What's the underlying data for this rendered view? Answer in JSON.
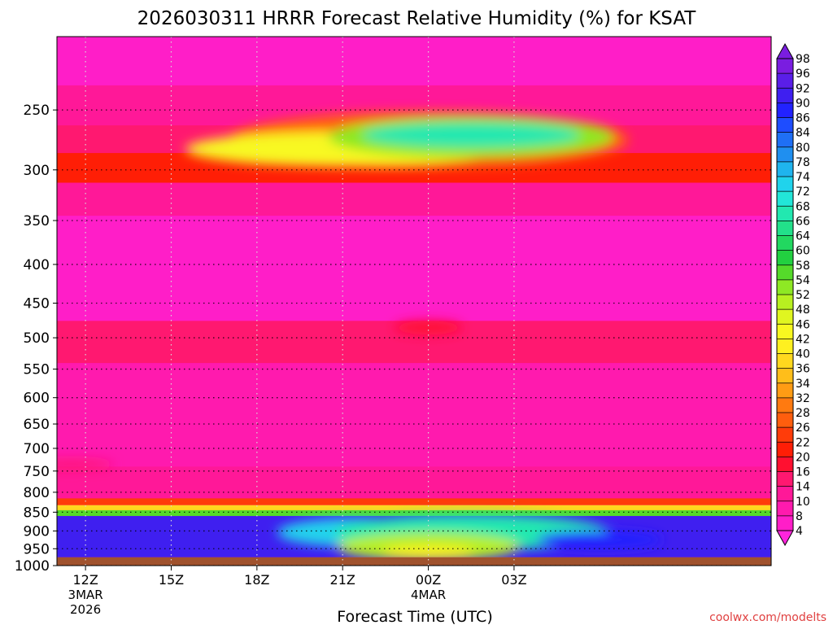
{
  "chart_data": {
    "type": "heatmap",
    "title": "2026030311 HRRR Forecast Relative Humidity (%) for KSAT",
    "xlabel": "Forecast Time (UTC)",
    "ylabel": "",
    "x_hours": [
      11,
      36
    ],
    "x_ticks": [
      {
        "hour": 12,
        "label": "12Z",
        "sub1": "3MAR",
        "sub2": "2026"
      },
      {
        "hour": 15,
        "label": "15Z",
        "sub1": "",
        "sub2": ""
      },
      {
        "hour": 18,
        "label": "18Z",
        "sub1": "",
        "sub2": ""
      },
      {
        "hour": 21,
        "label": "21Z",
        "sub1": "",
        "sub2": ""
      },
      {
        "hour": 24,
        "label": "00Z",
        "sub1": "4MAR",
        "sub2": ""
      },
      {
        "hour": 27,
        "label": "03Z",
        "sub1": "",
        "sub2": ""
      }
    ],
    "y_levels": [
      250,
      300,
      350,
      400,
      450,
      500,
      550,
      600,
      650,
      700,
      750,
      800,
      850,
      900,
      950,
      1000
    ],
    "y_range_hpa": [
      200,
      1000
    ],
    "surface_pressure_hpa": 975,
    "colorbar_labels": [
      98,
      96,
      92,
      90,
      86,
      84,
      80,
      78,
      74,
      72,
      68,
      66,
      64,
      60,
      58,
      54,
      52,
      48,
      46,
      42,
      40,
      36,
      34,
      32,
      28,
      26,
      22,
      20,
      16,
      14,
      10,
      8,
      4
    ],
    "colorbar_colors": [
      "#7a1de0",
      "#5a1ee8",
      "#3f1ff0",
      "#2222ff",
      "#1e4dff",
      "#1f6ff5",
      "#1f8ff0",
      "#1fb4ee",
      "#20d3ec",
      "#22e6d8",
      "#22e8b0",
      "#22e08a",
      "#22d860",
      "#22d040",
      "#55da2a",
      "#8ee824",
      "#b8f020",
      "#e0f620",
      "#f8f820",
      "#fff020",
      "#ffd81e",
      "#ffbe1a",
      "#ff9c14",
      "#ff7a10",
      "#ff5e0e",
      "#ff3c0a",
      "#ff1e06",
      "#ff1030",
      "#ff1870",
      "#ff1898",
      "#ff1aae",
      "#ff1ec8",
      "#ff24dc"
    ],
    "bands": [
      {
        "top": 200,
        "bottom": 232,
        "rh": 8
      },
      {
        "top": 232,
        "bottom": 262,
        "rh": 14
      },
      {
        "top": 262,
        "bottom": 285,
        "rh": 18
      },
      {
        "top": 285,
        "bottom": 312,
        "rh": 22
      },
      {
        "top": 312,
        "bottom": 345,
        "rh": 14
      },
      {
        "top": 345,
        "bottom": 475,
        "rh": 9
      },
      {
        "top": 475,
        "bottom": 540,
        "rh": 16
      },
      {
        "top": 540,
        "bottom": 740,
        "rh": 12
      },
      {
        "top": 740,
        "bottom": 815,
        "rh": 14
      },
      {
        "top": 815,
        "bottom": 832,
        "rh": 26
      },
      {
        "top": 832,
        "bottom": 845,
        "rh": 40
      },
      {
        "top": 845,
        "bottom": 860,
        "rh": 58
      },
      {
        "top": 860,
        "bottom": 975,
        "rh": 94
      }
    ],
    "features": [
      {
        "shape": "ellipse",
        "cx_hour": 24.0,
        "cy_hpa": 275,
        "rx_hours": 7.0,
        "ry_hpa": 24,
        "rh": 30
      },
      {
        "shape": "ellipse",
        "cx_hour": 21.0,
        "cy_hpa": 282,
        "rx_hours": 5.5,
        "ry_hpa": 15,
        "rh": 46
      },
      {
        "shape": "ellipse",
        "cx_hour": 25.5,
        "cy_hpa": 272,
        "rx_hours": 5.0,
        "ry_hpa": 17,
        "rh": 56
      },
      {
        "shape": "ellipse",
        "cx_hour": 25.5,
        "cy_hpa": 270,
        "rx_hours": 3.8,
        "ry_hpa": 10,
        "rh": 70
      },
      {
        "shape": "ellipse",
        "cx_hour": 24.0,
        "cy_hpa": 485,
        "rx_hours": 1.2,
        "ry_hpa": 10,
        "rh": 20
      },
      {
        "shape": "ellipse",
        "cx_hour": 11.5,
        "cy_hpa": 735,
        "rx_hours": 1.5,
        "ry_hpa": 10,
        "rh": 18
      },
      {
        "shape": "ellipse",
        "cx_hour": 21.5,
        "cy_hpa": 905,
        "rx_hours": 2.8,
        "ry_hpa": 40,
        "rh": 76
      },
      {
        "shape": "ellipse",
        "cx_hour": 25.5,
        "cy_hpa": 905,
        "rx_hours": 4.8,
        "ry_hpa": 50,
        "rh": 68
      },
      {
        "shape": "ellipse",
        "cx_hour": 24.0,
        "cy_hpa": 945,
        "rx_hours": 3.2,
        "ry_hpa": 40,
        "rh": 52
      },
      {
        "shape": "ellipse",
        "cx_hour": 24.0,
        "cy_hpa": 960,
        "rx_hours": 1.6,
        "ry_hpa": 18,
        "rh": 42
      },
      {
        "shape": "ellipse",
        "cx_hour": 30.0,
        "cy_hpa": 925,
        "rx_hours": 2.2,
        "ry_hpa": 25,
        "rh": 90
      }
    ]
  },
  "watermark": "coolwx.com/modelts",
  "colors": {
    "ground": "#a0522d",
    "missing_base": "#ff14a0"
  }
}
